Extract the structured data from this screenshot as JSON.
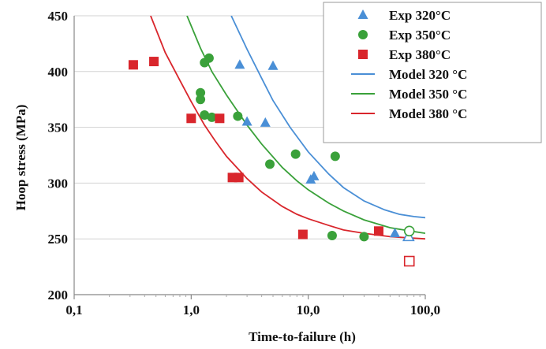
{
  "chart_data": {
    "type": "scatter",
    "xlabel": "Time-to-failure (h)",
    "ylabel": "Hoop stress (MPa)",
    "x_scale": "log",
    "xlim": [
      0.1,
      100
    ],
    "ylim": [
      200,
      450
    ],
    "x_ticks": [
      0.1,
      1,
      10,
      100
    ],
    "x_tick_labels": [
      "0,1",
      "1,0",
      "10,0",
      "100,0"
    ],
    "y_ticks": [
      200,
      250,
      300,
      350,
      400,
      450
    ],
    "y_tick_labels": [
      "200",
      "250",
      "300",
      "350",
      "400",
      "450"
    ],
    "grid": "horizontal",
    "legend_position": "top-right",
    "colors": {
      "c320": "#4a8fd6",
      "c350": "#3aa13a",
      "c380": "#d9262c"
    },
    "series": [
      {
        "name": "Exp 320°C",
        "kind": "points",
        "marker": "triangle",
        "color": "#4a8fd6",
        "points": [
          [
            2.6,
            406
          ],
          [
            5.0,
            405
          ],
          [
            3.0,
            355
          ],
          [
            4.3,
            354
          ],
          [
            10.5,
            303
          ],
          [
            11.2,
            306
          ],
          [
            55,
            255
          ]
        ],
        "open_points": [
          [
            72,
            252
          ]
        ]
      },
      {
        "name": "Exp 350°C",
        "kind": "points",
        "marker": "circle",
        "color": "#3aa13a",
        "points": [
          [
            1.3,
            408
          ],
          [
            1.42,
            412
          ],
          [
            1.2,
            381
          ],
          [
            1.2,
            375
          ],
          [
            1.3,
            361
          ],
          [
            1.5,
            359
          ],
          [
            2.5,
            360
          ],
          [
            7.8,
            326
          ],
          [
            17,
            324
          ],
          [
            4.7,
            317
          ],
          [
            16,
            253
          ],
          [
            30,
            252
          ]
        ],
        "open_points": [
          [
            73,
            257
          ]
        ]
      },
      {
        "name": "Exp 380°C",
        "kind": "points",
        "marker": "square",
        "color": "#d9262c",
        "points": [
          [
            0.32,
            406
          ],
          [
            0.48,
            409
          ],
          [
            1.0,
            358
          ],
          [
            1.75,
            358
          ],
          [
            2.25,
            305
          ],
          [
            2.55,
            305
          ],
          [
            9.0,
            254
          ],
          [
            40,
            257
          ]
        ],
        "open_points": [
          [
            73,
            230
          ]
        ]
      },
      {
        "name": "Model 320 °C",
        "kind": "line",
        "color": "#4a8fd6",
        "points": [
          [
            2.2,
            450
          ],
          [
            3,
            420
          ],
          [
            4,
            394
          ],
          [
            5,
            374
          ],
          [
            7,
            350
          ],
          [
            10,
            328
          ],
          [
            15,
            308
          ],
          [
            20,
            296
          ],
          [
            30,
            284
          ],
          [
            45,
            276
          ],
          [
            60,
            272
          ],
          [
            80,
            270
          ],
          [
            100,
            269
          ]
        ]
      },
      {
        "name": "Model 350 °C",
        "kind": "line",
        "color": "#3aa13a",
        "points": [
          [
            0.92,
            450
          ],
          [
            1.2,
            421
          ],
          [
            1.5,
            400
          ],
          [
            2,
            379
          ],
          [
            3,
            352
          ],
          [
            4,
            335
          ],
          [
            6,
            314
          ],
          [
            8,
            302
          ],
          [
            10,
            294
          ],
          [
            15,
            282
          ],
          [
            20,
            275
          ],
          [
            30,
            267
          ],
          [
            50,
            260
          ],
          [
            75,
            257
          ],
          [
            100,
            255
          ]
        ]
      },
      {
        "name": "Model 380 °C",
        "kind": "line",
        "color": "#d9262c",
        "points": [
          [
            0.45,
            450
          ],
          [
            0.6,
            417
          ],
          [
            0.8,
            392
          ],
          [
            1.0,
            373
          ],
          [
            1.3,
            352
          ],
          [
            1.6,
            338
          ],
          [
            2,
            324
          ],
          [
            3,
            304
          ],
          [
            4,
            292
          ],
          [
            6,
            279
          ],
          [
            8,
            272
          ],
          [
            10,
            268
          ],
          [
            15,
            262
          ],
          [
            20,
            258
          ],
          [
            30,
            255
          ],
          [
            50,
            252
          ],
          [
            100,
            250
          ]
        ]
      }
    ]
  }
}
